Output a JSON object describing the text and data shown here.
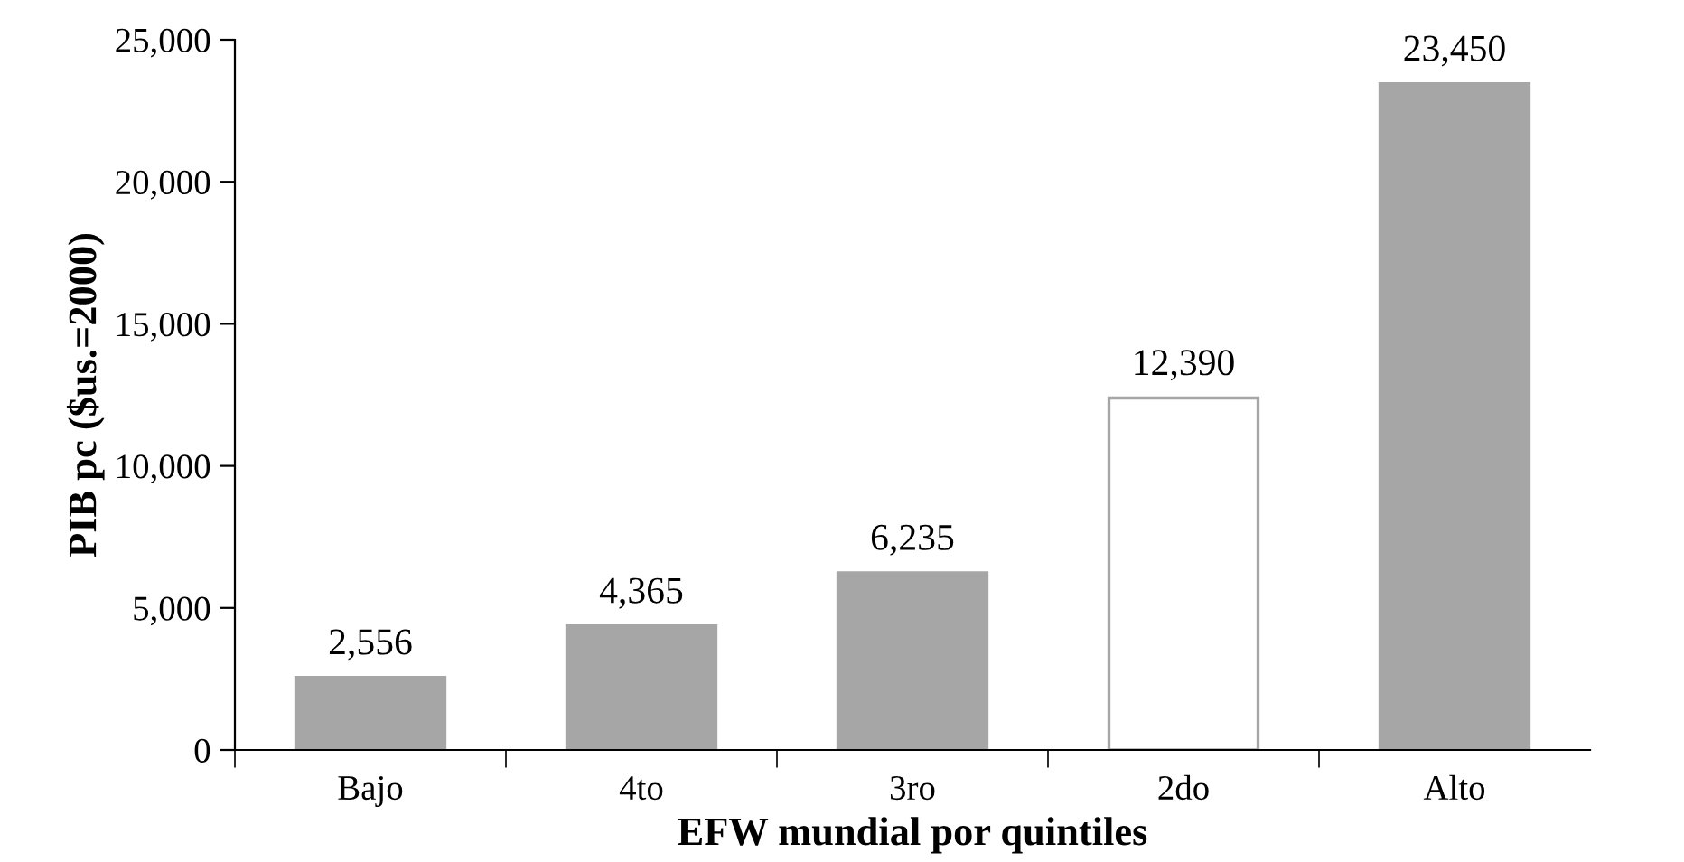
{
  "chart_data": {
    "type": "bar",
    "xlabel": "EFW mundial por quintiles",
    "ylabel": "PIB pc ($us.=2000)",
    "categories": [
      "Bajo",
      "4to",
      "3ro",
      "2do",
      "Alto"
    ],
    "values": [
      2556,
      4365,
      6235,
      12390,
      23450
    ],
    "colors": [
      "#a6a6a6",
      "#a6a6a6",
      "#a6a6a6",
      "#ffffff",
      "#a6a6a6"
    ],
    "value_labels": [
      "2,556",
      "4,365",
      "6,235",
      "12,390",
      "23,450"
    ],
    "ylim": [
      0,
      25000
    ],
    "yticks": [
      0,
      {
        "value": 5000,
        "label": "5,000"
      },
      {
        "value": 10000,
        "label": "10,000"
      },
      {
        "value": 15000,
        "label": "15,000"
      },
      {
        "value": 20000,
        "label": "20,000"
      },
      {
        "value": 25000,
        "label": "25,000"
      }
    ],
    "grid": false
  }
}
